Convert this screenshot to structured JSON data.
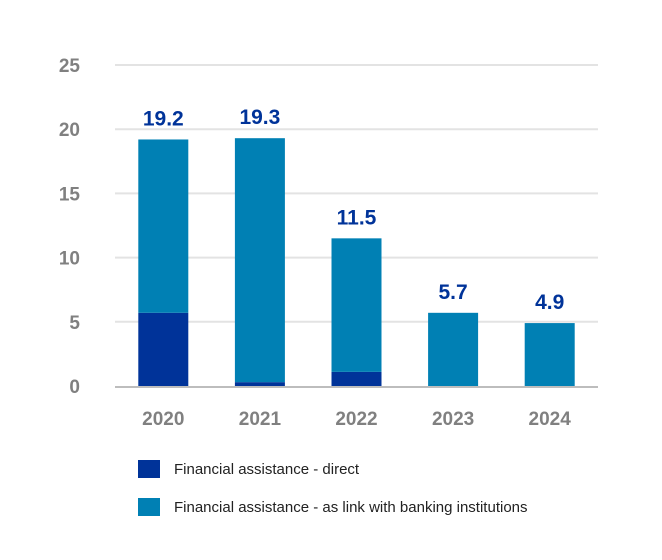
{
  "chart_data": {
    "type": "bar",
    "stacked": true,
    "categories": [
      "2020",
      "2021",
      "2022",
      "2023",
      "2024"
    ],
    "series": [
      {
        "name": "Financial assistance - direct",
        "color": "#003399",
        "values": [
          5.7,
          0.3,
          1.1,
          0,
          0
        ]
      },
      {
        "name": "Financial assistance - as link with banking institutions",
        "color": "#0080B4",
        "values": [
          13.5,
          19.0,
          10.4,
          5.7,
          4.9
        ]
      }
    ],
    "totals": [
      "19.2",
      "19.3",
      "11.5",
      "5.7",
      "4.9"
    ],
    "yticks": [
      "0",
      "5",
      "10",
      "15",
      "20",
      "25"
    ],
    "ylim": [
      0,
      25
    ],
    "grid": true,
    "legend_position": "bottom",
    "label_color": "#003399",
    "axis_text_color": "#808080"
  }
}
